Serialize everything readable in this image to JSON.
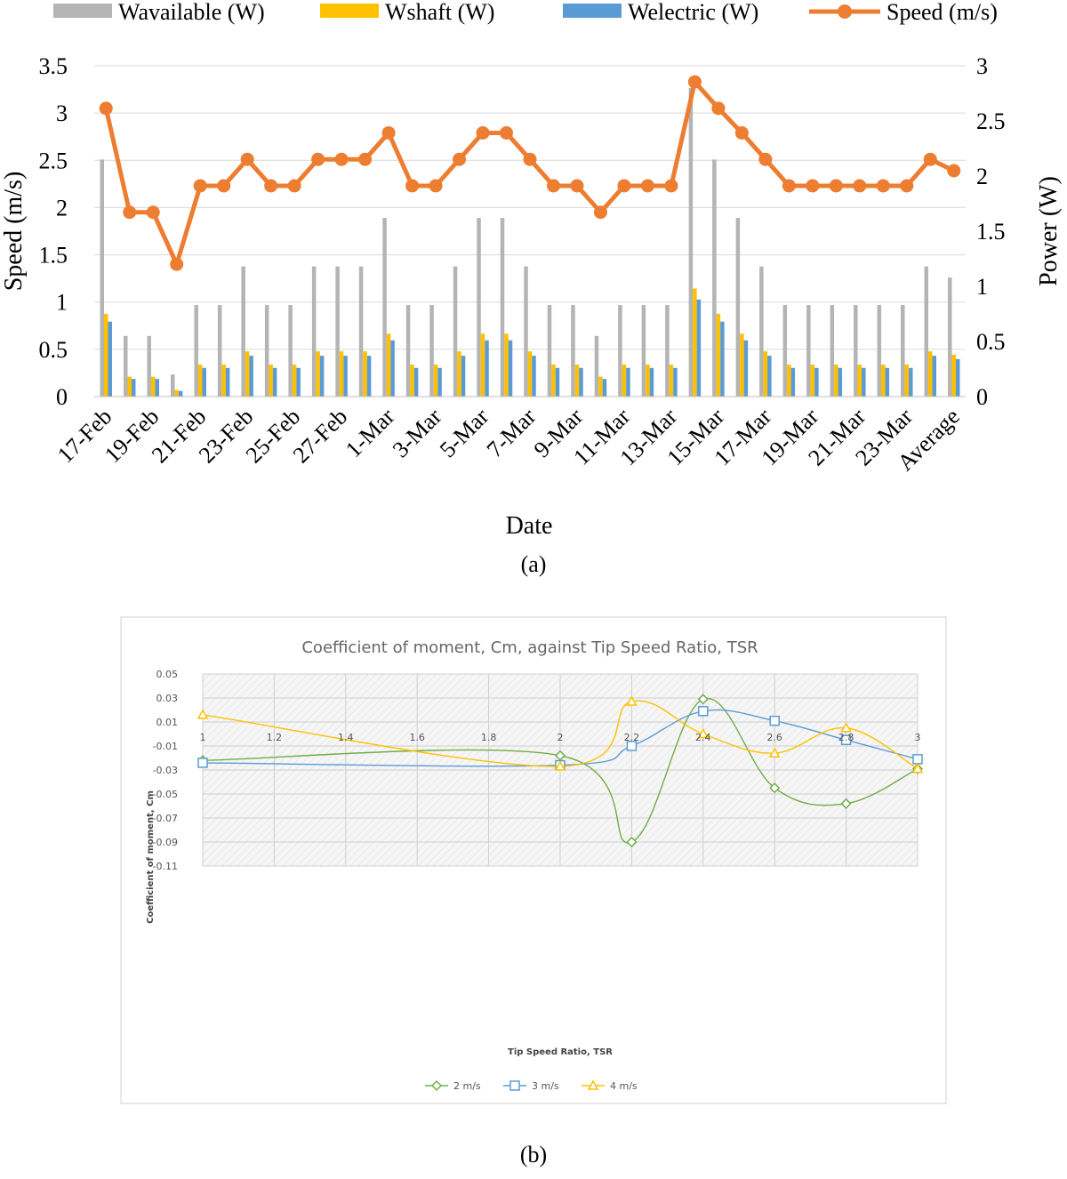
{
  "chart_data": [
    {
      "type": "bar",
      "title": "",
      "xlabel": "Date",
      "ylabel": "Speed (m/s)",
      "y2label": "Power (W)",
      "caption": "(a)",
      "ylim": [
        0,
        3.5
      ],
      "y2lim": [
        0,
        3
      ],
      "yticks": [
        "0",
        "0.5",
        "1",
        "1.5",
        "2",
        "2.5",
        "3",
        "3.5"
      ],
      "y2ticks": [
        "0",
        "0.5",
        "1",
        "1.5",
        "2",
        "2.5",
        "3"
      ],
      "legend_position": "top",
      "categories": [
        "17-Feb",
        "18-Feb",
        "19-Feb",
        "20-Feb",
        "21-Feb",
        "22-Feb",
        "23-Feb",
        "24-Feb",
        "25-Feb",
        "26-Feb",
        "27-Feb",
        "28-Feb",
        "1-Mar",
        "2-Mar",
        "3-Mar",
        "4-Mar",
        "5-Mar",
        "6-Mar",
        "7-Mar",
        "8-Mar",
        "9-Mar",
        "10-Mar",
        "11-Mar",
        "12-Mar",
        "13-Mar",
        "14-Mar",
        "15-Mar",
        "16-Mar",
        "17-Mar",
        "18-Mar",
        "19-Mar",
        "20-Mar",
        "21-Mar",
        "22-Mar",
        "23-Mar",
        "24-Mar",
        "Average"
      ],
      "tick_labels": [
        "17-Feb",
        "19-Feb",
        "21-Feb",
        "23-Feb",
        "25-Feb",
        "27-Feb",
        "1-Mar",
        "3-Mar",
        "5-Mar",
        "7-Mar",
        "9-Mar",
        "11-Mar",
        "13-Mar",
        "15-Mar",
        "17-Mar",
        "19-Mar",
        "21-Mar",
        "23-Mar",
        "Average"
      ],
      "series": [
        {
          "name": "Wavailable (W)",
          "type": "bar",
          "axis": "right",
          "color": "#b4b4b4",
          "values": [
            2.15,
            0.55,
            0.55,
            0.2,
            0.83,
            0.83,
            1.18,
            0.83,
            0.83,
            1.18,
            1.18,
            1.18,
            1.62,
            0.83,
            0.83,
            1.18,
            1.62,
            1.62,
            1.18,
            0.83,
            0.83,
            0.55,
            0.83,
            0.83,
            0.83,
            2.8,
            2.15,
            1.62,
            1.18,
            0.83,
            0.83,
            0.83,
            0.83,
            0.83,
            0.83,
            1.18,
            1.08
          ]
        },
        {
          "name": "Wshaft (W)",
          "type": "bar",
          "axis": "right",
          "color": "#ffc000",
          "values": [
            0.75,
            0.18,
            0.18,
            0.06,
            0.29,
            0.29,
            0.41,
            0.29,
            0.29,
            0.41,
            0.41,
            0.41,
            0.57,
            0.29,
            0.29,
            0.41,
            0.57,
            0.57,
            0.41,
            0.29,
            0.29,
            0.18,
            0.29,
            0.29,
            0.29,
            0.98,
            0.75,
            0.57,
            0.41,
            0.29,
            0.29,
            0.29,
            0.29,
            0.29,
            0.29,
            0.41,
            0.38
          ]
        },
        {
          "name": "Welectric (W)",
          "type": "bar",
          "axis": "right",
          "color": "#5b9bd5",
          "values": [
            0.68,
            0.16,
            0.16,
            0.05,
            0.26,
            0.26,
            0.37,
            0.26,
            0.26,
            0.37,
            0.37,
            0.37,
            0.51,
            0.26,
            0.26,
            0.37,
            0.51,
            0.51,
            0.37,
            0.26,
            0.26,
            0.16,
            0.26,
            0.26,
            0.26,
            0.88,
            0.68,
            0.51,
            0.37,
            0.26,
            0.26,
            0.26,
            0.26,
            0.26,
            0.26,
            0.37,
            0.34
          ]
        },
        {
          "name": "Speed (m/s)",
          "type": "line",
          "axis": "left",
          "color": "#ed7d31",
          "values": [
            3.05,
            1.95,
            1.95,
            1.4,
            2.23,
            2.23,
            2.51,
            2.23,
            2.23,
            2.51,
            2.51,
            2.51,
            2.79,
            2.23,
            2.23,
            2.51,
            2.79,
            2.79,
            2.51,
            2.23,
            2.23,
            1.95,
            2.23,
            2.23,
            2.23,
            3.33,
            3.05,
            2.79,
            2.51,
            2.23,
            2.23,
            2.23,
            2.23,
            2.23,
            2.23,
            2.51,
            2.39
          ]
        }
      ]
    },
    {
      "type": "line",
      "title": "Coefficient of moment, Cm, against Tip Speed Ratio, TSR",
      "xlabel": "Tip Speed Ratio, TSR",
      "ylabel": "Coefficient of moment, Cm",
      "caption": "(b)",
      "xlim": [
        1,
        3
      ],
      "ylim": [
        -0.11,
        0.05
      ],
      "xticks": [
        "1",
        "1.2",
        "1.4",
        "1.6",
        "1.8",
        "2",
        "2.2",
        "2.4",
        "2.6",
        "2.8",
        "3"
      ],
      "yticks": [
        "0.05",
        "0.03",
        "0.01",
        "-0.01",
        "-0.03",
        "-0.05",
        "-0.07",
        "-0.09",
        "-0.11"
      ],
      "grid": true,
      "legend_position": "bottom",
      "series": [
        {
          "name": "2 m/s",
          "marker": "diamond",
          "color": "#70ad47",
          "points": [
            [
              1,
              -0.022
            ],
            [
              2,
              -0.018
            ],
            [
              2.2,
              -0.09
            ],
            [
              2.4,
              0.029
            ],
            [
              2.6,
              -0.045
            ],
            [
              2.8,
              -0.058
            ],
            [
              3,
              -0.029
            ]
          ]
        },
        {
          "name": "3 m/s",
          "marker": "square",
          "color": "#5b9bd5",
          "points": [
            [
              1,
              -0.024
            ],
            [
              2,
              -0.026
            ],
            [
              2.2,
              -0.01
            ],
            [
              2.4,
              0.019
            ],
            [
              2.6,
              0.011
            ],
            [
              2.8,
              -0.005
            ],
            [
              3,
              -0.021
            ]
          ]
        },
        {
          "name": "4 m/s",
          "marker": "triangle",
          "color": "#ffc000",
          "points": [
            [
              1,
              0.016
            ],
            [
              2,
              -0.027
            ],
            [
              2.2,
              0.027
            ],
            [
              2.4,
              0.0
            ],
            [
              2.6,
              -0.016
            ],
            [
              2.8,
              0.005
            ],
            [
              3,
              -0.029
            ]
          ]
        }
      ]
    }
  ]
}
